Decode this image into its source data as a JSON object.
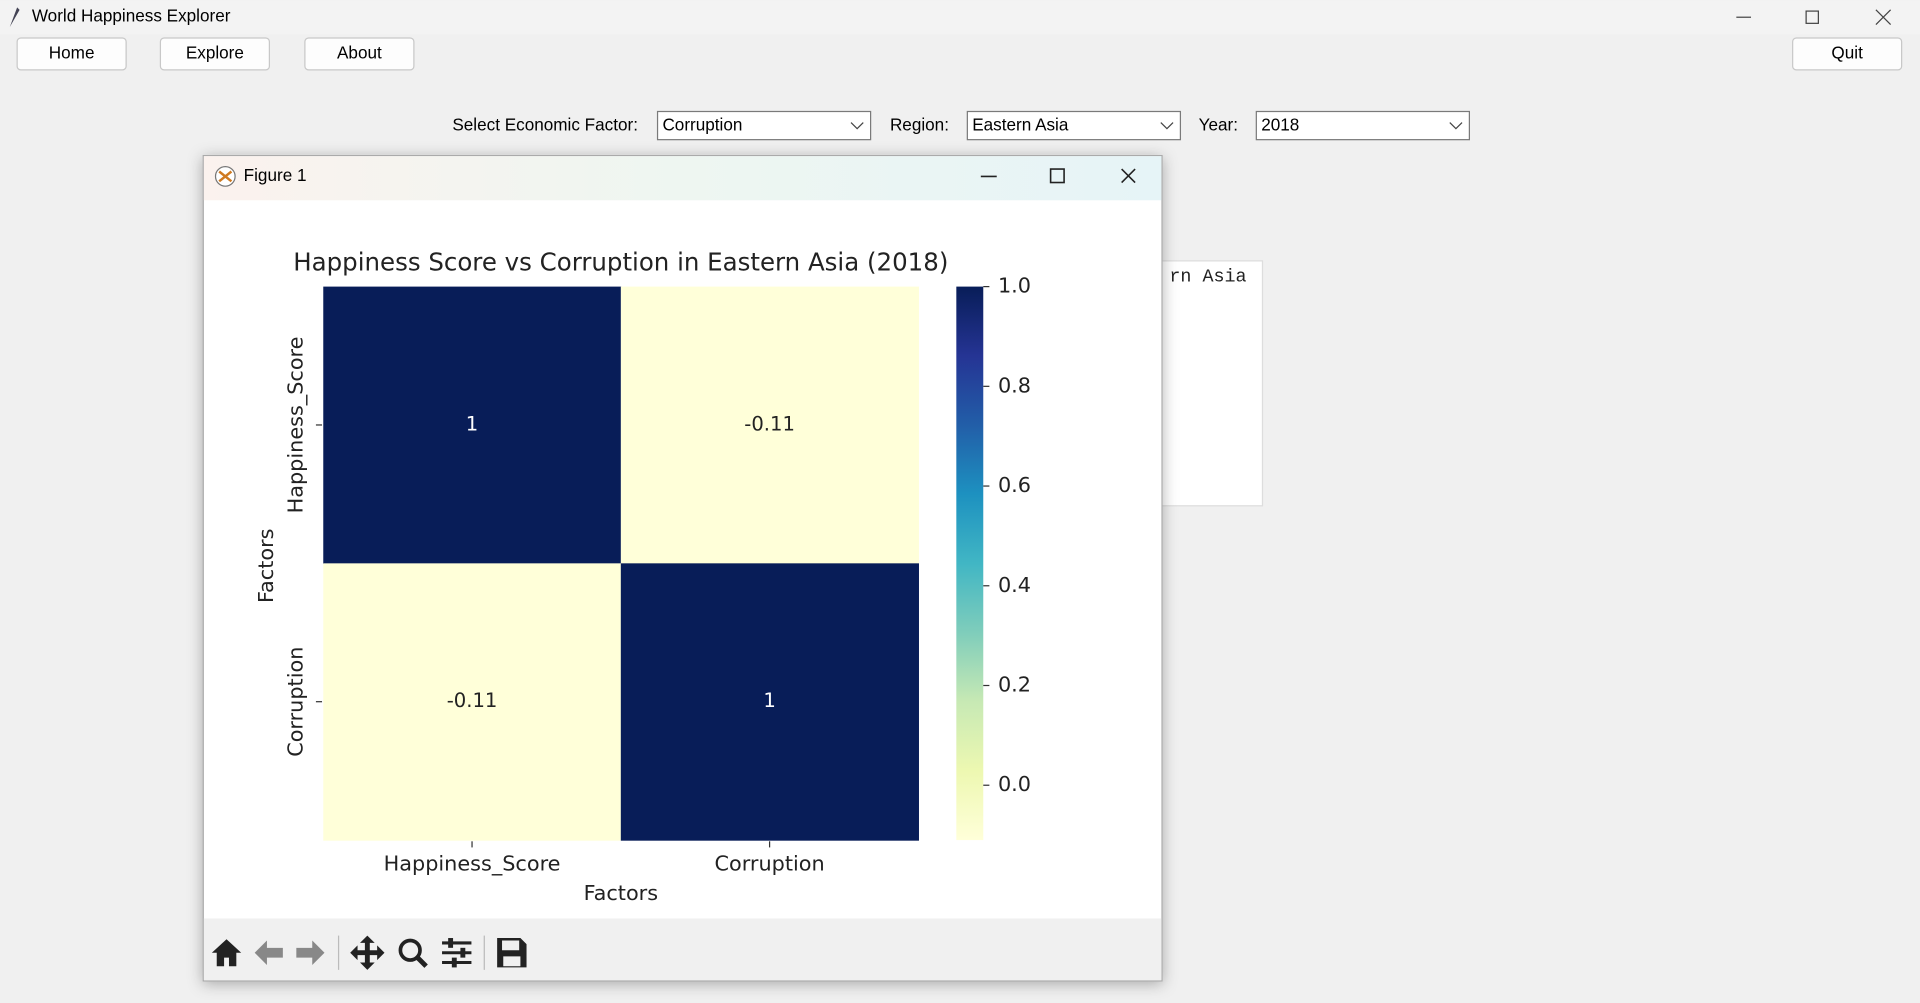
{
  "window": {
    "title": "World Happiness Explorer"
  },
  "nav": {
    "buttons": [
      "Home",
      "Explore",
      "About"
    ],
    "quit": "Quit"
  },
  "controls": {
    "factor_label": "Select Economic Factor:",
    "factor": "Corruption",
    "region_label": "Region:",
    "region": "Eastern Asia",
    "year_label": "Year:",
    "year": "2018"
  },
  "background_text": "rn Asia",
  "figure": {
    "title": "Figure 1"
  },
  "chart_data": {
    "type": "heatmap",
    "title": "Happiness Score vs Corruption in Eastern Asia (2018)",
    "x_label": "Factors",
    "y_label": "Factors",
    "x_categories": [
      "Happiness_Score",
      "Corruption"
    ],
    "y_categories": [
      "Happiness_Score",
      "Corruption"
    ],
    "values": [
      [
        1,
        -0.11
      ],
      [
        -0.11,
        1
      ]
    ],
    "clim": [
      -0.11,
      1
    ],
    "cticks": [
      {
        "value": 0,
        "label": "0.0"
      },
      0.2,
      0.4,
      0.6,
      0.8,
      {
        "value": 1,
        "label": "1.0"
      }
    ],
    "colors": [
      "#ffffd9",
      "#edf8b1",
      "#c7e9b4",
      "#7fcdbb",
      "#41b6c4",
      "#1d91c0",
      "#225ea8",
      "#253494",
      "#081d58"
    ]
  }
}
